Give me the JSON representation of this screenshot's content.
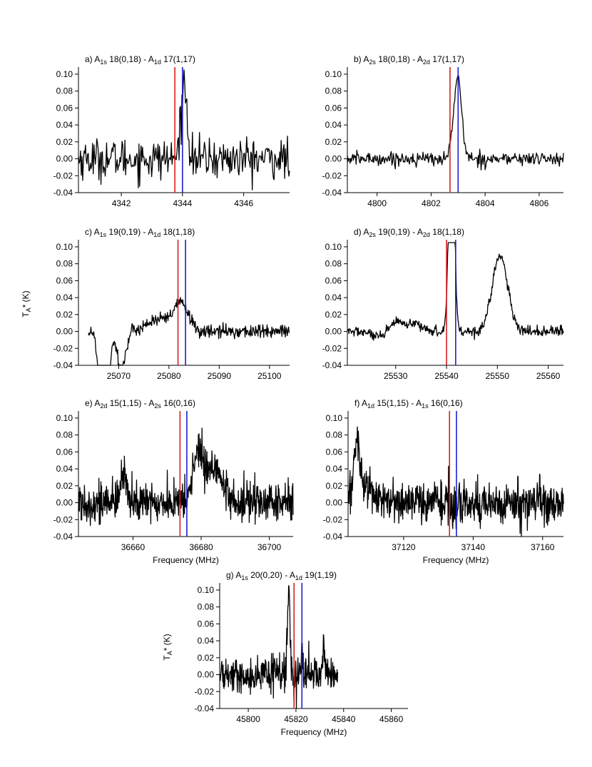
{
  "figure": {
    "shared_ylabel_top": "T_A* (K)",
    "xlabel": "Frequency (MHz)"
  },
  "chart_data": [
    {
      "id": "a",
      "type": "line",
      "label": "a)",
      "transition": {
        "upper_sym": "A",
        "upper_sub": "1s",
        "upper_q": "18(0,18)",
        "lower_sym": "A",
        "lower_sub": "1d",
        "lower_q": "17(1,17)"
      },
      "xlim": [
        4340.6,
        4347.5
      ],
      "ylim": [
        -0.04,
        0.105
      ],
      "xticks": [
        4342,
        4344,
        4346
      ],
      "yticks": [
        -0.04,
        -0.02,
        0.0,
        0.02,
        0.04,
        0.06,
        0.08,
        0.1
      ],
      "ytick_labels": [
        "-0.04",
        "-0.02",
        "0.00",
        "0.02",
        "0.04",
        "0.06",
        "0.08",
        "0.10"
      ],
      "xlabel": "",
      "ylabel": "",
      "red_line": 4343.75,
      "blue_line": 4344.0,
      "noise": 0.012,
      "features": [
        {
          "center": 4344.05,
          "amp": 0.09,
          "width": 0.1,
          "clip": true
        }
      ],
      "points": 300
    },
    {
      "id": "b",
      "type": "line",
      "label": "b)",
      "transition": {
        "upper_sym": "A",
        "upper_sub": "2s",
        "upper_q": "18(0,18)",
        "lower_sym": "A",
        "lower_sub": "2d",
        "lower_q": "17(1,17)"
      },
      "xlim": [
        4798.9,
        4806.9
      ],
      "ylim": [
        -0.04,
        0.105
      ],
      "xticks": [
        4800,
        4802,
        4804,
        4806
      ],
      "yticks": [
        -0.04,
        -0.02,
        0.0,
        0.02,
        0.04,
        0.06,
        0.08,
        0.1
      ],
      "ytick_labels": [
        "-0.04",
        "-0.02",
        "0.00",
        "0.02",
        "0.04",
        "0.06",
        "0.08",
        "0.10"
      ],
      "xlabel": "",
      "ylabel": "",
      "red_line": 4802.7,
      "blue_line": 4803.0,
      "noise": 0.004,
      "features": [
        {
          "center": 4802.98,
          "amp": 0.095,
          "width": 0.15
        }
      ],
      "points": 320
    },
    {
      "id": "c",
      "type": "line",
      "label": "c)",
      "transition": {
        "upper_sym": "A",
        "upper_sub": "1s",
        "upper_q": "19(0,19)",
        "lower_sym": "A",
        "lower_sub": "1d",
        "lower_q": "18(1,18)"
      },
      "xlim": [
        25062,
        25104
      ],
      "ylim": [
        -0.04,
        0.105
      ],
      "xticks": [
        25070,
        25080,
        25090,
        25100
      ],
      "yticks": [
        -0.04,
        -0.02,
        0.0,
        0.02,
        0.04,
        0.06,
        0.08,
        0.1
      ],
      "ytick_labels": [
        "-0.04",
        "-0.02",
        "0.00",
        "0.02",
        "0.04",
        "0.06",
        "0.08",
        "0.10"
      ],
      "xlabel": "",
      "ylabel": "T_A* (K)",
      "red_line": 25081.8,
      "blue_line": 25083.3,
      "noise": 0.004,
      "x_start": 25064.0,
      "features": [
        {
          "center": 25082.5,
          "amp": 0.032,
          "width": 1.4
        },
        {
          "center": 25078.0,
          "amp": 0.014,
          "width": 2.5
        },
        {
          "center": 25069.0,
          "amp": 0.012,
          "width": 0.6
        },
        {
          "center": 25066.3,
          "amp": -0.05,
          "width": 0.6
        },
        {
          "center": 25067.8,
          "amp": -0.055,
          "width": 0.7
        },
        {
          "center": 25070.5,
          "amp": -0.045,
          "width": 0.9
        }
      ],
      "points": 420
    },
    {
      "id": "d",
      "type": "line",
      "label": "d)",
      "transition": {
        "upper_sym": "A",
        "upper_sub": "2s",
        "upper_q": "19(0,19)",
        "lower_sym": "A",
        "lower_sub": "2d",
        "lower_q": "18(1,18)"
      },
      "xlim": [
        25520.5,
        25563
      ],
      "ylim": [
        -0.04,
        0.105
      ],
      "xticks": [
        25530,
        25540,
        25550,
        25560
      ],
      "yticks": [
        -0.04,
        -0.02,
        0.0,
        0.02,
        0.04,
        0.06,
        0.08,
        0.1
      ],
      "ytick_labels": [
        "-0.04",
        "-0.02",
        "0.00",
        "0.02",
        "0.04",
        "0.06",
        "0.08",
        "0.10"
      ],
      "xlabel": "",
      "ylabel": "",
      "red_line": 25540.0,
      "blue_line": 25541.8,
      "noise": 0.003,
      "features": [
        {
          "center": 25541.0,
          "amp": 0.3,
          "width": 0.5,
          "clip": true
        },
        {
          "center": 25550.5,
          "amp": 0.09,
          "width": 1.5
        },
        {
          "center": 25530.0,
          "amp": 0.012,
          "width": 1.4
        },
        {
          "center": 25534.0,
          "amp": 0.008,
          "width": 1.5
        },
        {
          "center": 25527.0,
          "amp": -0.008,
          "width": 1.5
        }
      ],
      "points": 420
    },
    {
      "id": "e",
      "type": "line",
      "label": "e)",
      "transition": {
        "upper_sym": "A",
        "upper_sub": "2d",
        "upper_q": "15(1,15)",
        "lower_sym": "A",
        "lower_sub": "2s",
        "lower_q": "16(0,16)"
      },
      "xlim": [
        36644,
        36707
      ],
      "ylim": [
        -0.04,
        0.105
      ],
      "xticks": [
        36660,
        36680,
        36700
      ],
      "yticks": [
        -0.04,
        -0.02,
        0.0,
        0.02,
        0.04,
        0.06,
        0.08,
        0.1
      ],
      "ytick_labels": [
        "-0.04",
        "-0.02",
        "0.00",
        "0.02",
        "0.04",
        "0.06",
        "0.08",
        "0.10"
      ],
      "xlabel": "Frequency (MHz)",
      "ylabel": "",
      "red_line": 36673.8,
      "blue_line": 36675.8,
      "noise": 0.012,
      "features": [
        {
          "center": 36679.0,
          "amp": 0.055,
          "width": 1.5
        },
        {
          "center": 36682.5,
          "amp": 0.03,
          "width": 2.0
        },
        {
          "center": 36685.0,
          "amp": 0.03,
          "width": 1.2
        },
        {
          "center": 36657.5,
          "amp": 0.035,
          "width": 0.9
        }
      ],
      "points": 650
    },
    {
      "id": "f",
      "type": "line",
      "label": "f)",
      "transition": {
        "upper_sym": "A",
        "upper_sub": "1d",
        "upper_q": "15(1,15)",
        "lower_sym": "A",
        "lower_sub": "1s",
        "lower_q": "16(0,16)"
      },
      "xlim": [
        37104,
        37166
      ],
      "ylim": [
        -0.04,
        0.105
      ],
      "xticks": [
        37120,
        37140,
        37160
      ],
      "yticks": [
        -0.04,
        -0.02,
        0.0,
        0.02,
        0.04,
        0.06,
        0.08,
        0.1
      ],
      "ytick_labels": [
        "-0.04",
        "-0.02",
        "0.00",
        "0.02",
        "0.04",
        "0.06",
        "0.08",
        "0.10"
      ],
      "xlabel": "Frequency (MHz)",
      "ylabel": "",
      "red_line": 37133.2,
      "blue_line": 37135.2,
      "noise": 0.012,
      "features": [
        {
          "center": 37106.5,
          "amp": 0.065,
          "width": 0.8
        },
        {
          "center": 37109.0,
          "amp": 0.02,
          "width": 2.5
        },
        {
          "center": 37134.5,
          "amp": -0.015,
          "width": 0.5
        }
      ],
      "points": 650
    },
    {
      "id": "g",
      "type": "line",
      "label": "g)",
      "transition": {
        "upper_sym": "A",
        "upper_sub": "1s",
        "upper_q": "20(0,20)",
        "lower_sym": "A",
        "lower_sub": "1d",
        "lower_q": "19(1,19)"
      },
      "xlim": [
        45788,
        45867
      ],
      "ylim": [
        -0.04,
        0.105
      ],
      "xticks": [
        45800,
        45820,
        45840,
        45860
      ],
      "yticks": [
        -0.04,
        -0.02,
        0.0,
        0.02,
        0.04,
        0.06,
        0.08,
        0.1
      ],
      "ytick_labels": [
        "-0.04",
        "-0.02",
        "0.00",
        "0.02",
        "0.04",
        "0.06",
        "0.08",
        "0.10"
      ],
      "xlabel": "Frequency (MHz)",
      "ylabel": "T_A* (K)",
      "red_line": 45819.2,
      "blue_line": 45822.5,
      "noise": 0.01,
      "x_start": 45788.0,
      "x_end": 45837.5,
      "features": [
        {
          "center": 45817.0,
          "amp": 0.1,
          "width": 0.5,
          "clip": true
        },
        {
          "center": 45831.5,
          "amp": 0.03,
          "width": 0.6
        },
        {
          "center": 45822.5,
          "amp": 0.02,
          "width": 0.5
        }
      ],
      "points": 380
    }
  ]
}
